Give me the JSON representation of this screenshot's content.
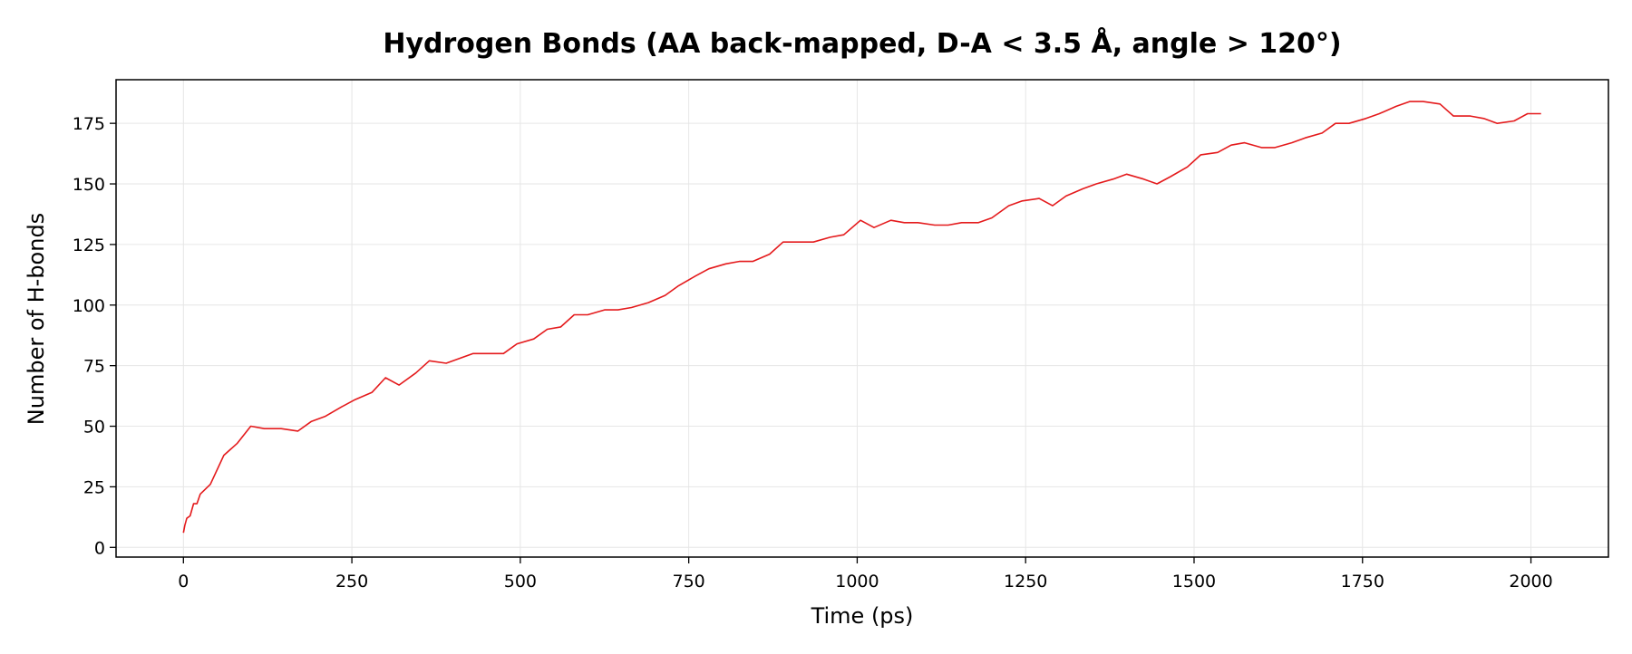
{
  "chart_data": {
    "type": "line",
    "title": "Hydrogen Bonds (AA back-mapped, D-A < 3.5 Å, angle > 120°)",
    "xlabel": "Time (ps)",
    "ylabel": "Number of H-bonds",
    "xlim": [
      -100,
      2115
    ],
    "ylim": [
      -4,
      193
    ],
    "xticks": [
      0,
      250,
      500,
      750,
      1000,
      1250,
      1500,
      1750,
      2000
    ],
    "yticks": [
      0,
      25,
      50,
      75,
      100,
      125,
      150,
      175
    ],
    "grid": true,
    "color": "#e41a1c",
    "series": [
      {
        "x": [
          0,
          2,
          5,
          10,
          15,
          20,
          25,
          40,
          60,
          80,
          100,
          120,
          145,
          170,
          190,
          210,
          235,
          255,
          280,
          300,
          320,
          345,
          365,
          390,
          410,
          430,
          455,
          475,
          495,
          520,
          540,
          560,
          580,
          600,
          625,
          645,
          665,
          690,
          715,
          735,
          760,
          780,
          805,
          825,
          845,
          870,
          890,
          915,
          935,
          960,
          980,
          1005,
          1025,
          1050,
          1070,
          1090,
          1115,
          1135,
          1155,
          1180,
          1200,
          1225,
          1245,
          1270,
          1290,
          1310,
          1335,
          1355,
          1380,
          1400,
          1425,
          1445,
          1465,
          1490,
          1510,
          1535,
          1555,
          1575,
          1600,
          1620,
          1645,
          1665,
          1690,
          1710,
          1730,
          1755,
          1775,
          1800,
          1820,
          1840,
          1865,
          1885,
          1910,
          1930,
          1950,
          1975,
          1995,
          2015
        ],
        "values": [
          6,
          9,
          12,
          13,
          18,
          18,
          22,
          26,
          38,
          43,
          50,
          49,
          49,
          48,
          52,
          54,
          58,
          61,
          64,
          70,
          67,
          72,
          77,
          76,
          78,
          80,
          80,
          80,
          84,
          86,
          90,
          91,
          96,
          96,
          98,
          98,
          99,
          101,
          104,
          108,
          112,
          115,
          117,
          118,
          118,
          121,
          126,
          126,
          126,
          128,
          129,
          135,
          132,
          135,
          134,
          134,
          133,
          133,
          134,
          134,
          136,
          141,
          143,
          144,
          141,
          145,
          148,
          150,
          152,
          154,
          152,
          150,
          153,
          157,
          162,
          163,
          166,
          167,
          165,
          165,
          167,
          169,
          171,
          175,
          175,
          177,
          179,
          182,
          184,
          184,
          183,
          178,
          178,
          177,
          175,
          176,
          179,
          179
        ]
      }
    ]
  }
}
